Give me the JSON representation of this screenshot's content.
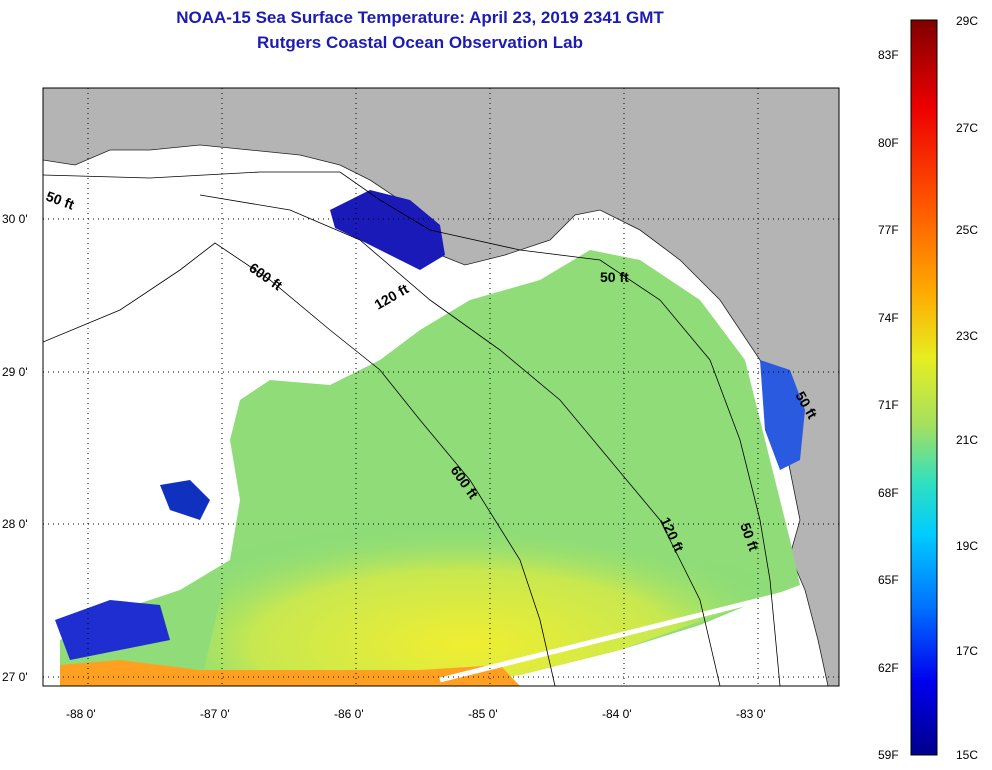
{
  "header": {
    "title": "NOAA-15 Sea Surface Temperature:  April 23, 2019 2341 GMT",
    "subtitle": "Rutgers Coastal Ocean Observation Lab"
  },
  "map": {
    "lat_labels": [
      "30 0'",
      "29 0'",
      "28 0'",
      "27 0'"
    ],
    "lon_labels": [
      "-88 0'",
      "-87 0'",
      "-86 0'",
      "-85 0'",
      "-84 0'",
      "-83 0'"
    ],
    "contour_labels": [
      "50 ft",
      "600 ft",
      "120 ft",
      "50 ft",
      "600 ft",
      "120 ft",
      "50 ft",
      "50 ft"
    ],
    "colors": {
      "land": "#b4b4b4",
      "cloud": "#ffffff",
      "ocean_mid": "#9ee05a"
    }
  },
  "colorbar": {
    "fahrenheit": [
      "83F",
      "80F",
      "77F",
      "74F",
      "71F",
      "68F",
      "65F",
      "62F",
      "59F"
    ],
    "celsius": [
      "29C",
      "27C",
      "25C",
      "23C",
      "21C",
      "19C",
      "17C",
      "15C"
    ]
  }
}
